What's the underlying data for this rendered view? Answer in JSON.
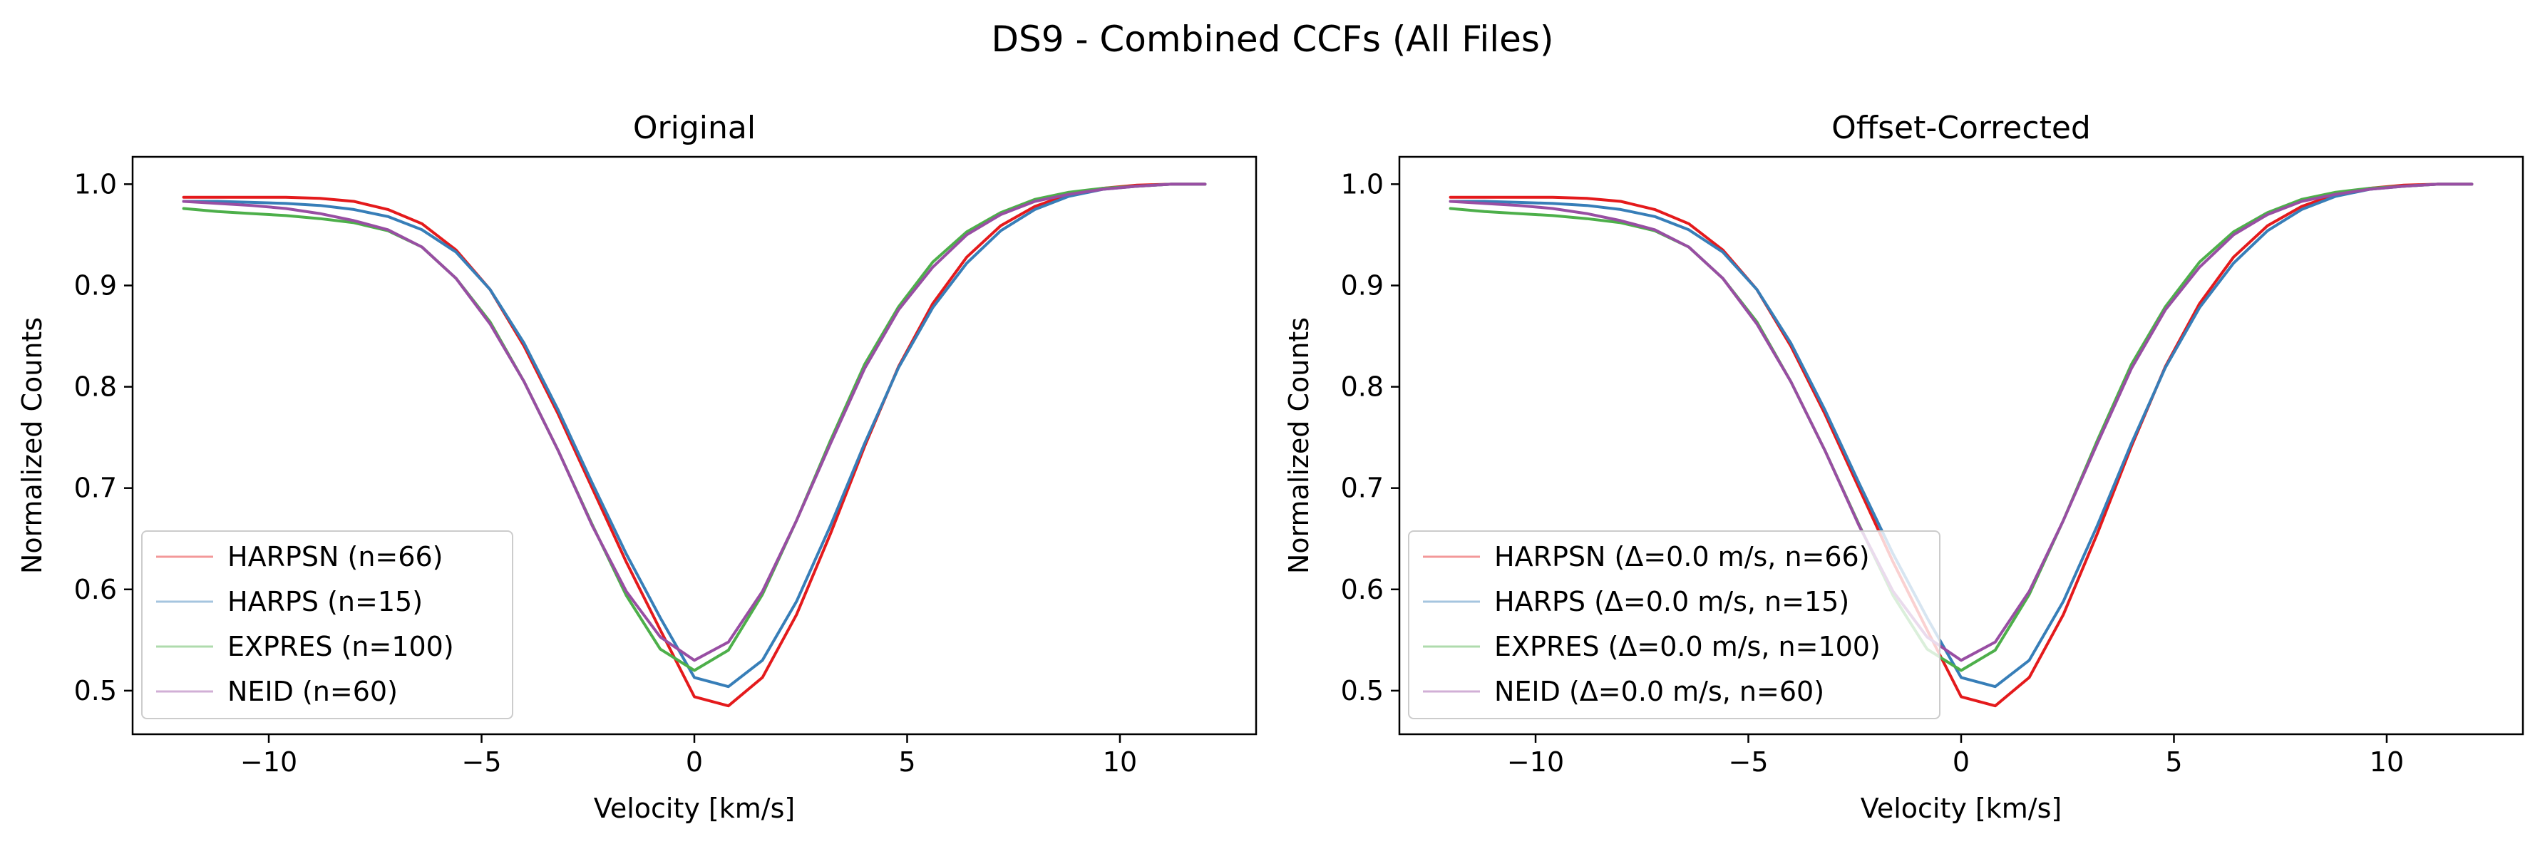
{
  "figure_title": "DS9 - Combined CCFs (All Files)",
  "chart_data": [
    {
      "type": "line",
      "title": "Original",
      "xlabel": "Velocity [km/s]",
      "ylabel": "Normalized Counts",
      "xlim": [
        -13.2,
        13.2
      ],
      "ylim": [
        0.457,
        1.027
      ],
      "xticks": [
        -10,
        -5,
        0,
        5,
        10
      ],
      "xtick_labels": [
        "−10",
        "−5",
        "0",
        "5",
        "10"
      ],
      "yticks": [
        0.5,
        0.6,
        0.7,
        0.8,
        0.9,
        1.0
      ],
      "ytick_labels": [
        "0.5",
        "0.6",
        "0.7",
        "0.8",
        "0.9",
        "1.0"
      ],
      "grid": false,
      "legend_position": "lower-left",
      "x": [
        -12,
        -11.2,
        -10.4,
        -9.6,
        -8.8,
        -8,
        -7.2,
        -6.4,
        -5.6,
        -4.8,
        -4,
        -3.2,
        -2.4,
        -1.6,
        -0.8,
        0,
        0.8,
        1.6,
        2.4,
        3.2,
        4,
        4.8,
        5.6,
        6.4,
        7.2,
        8,
        8.8,
        9.6,
        10.4,
        11.2,
        12
      ],
      "series": [
        {
          "name": "HARPSN (n=66)",
          "color": "#e41a1c",
          "values": [
            0.987,
            0.987,
            0.987,
            0.987,
            0.986,
            0.983,
            0.975,
            0.961,
            0.935,
            0.896,
            0.84,
            0.773,
            0.7,
            0.627,
            0.56,
            0.494,
            0.485,
            0.513,
            0.575,
            0.655,
            0.741,
            0.82,
            0.882,
            0.928,
            0.959,
            0.978,
            0.99,
            0.996,
            0.999,
            1.0,
            1.0
          ]
        },
        {
          "name": "HARPS (n=15)",
          "color": "#377eb8",
          "values": [
            0.983,
            0.983,
            0.982,
            0.981,
            0.979,
            0.975,
            0.968,
            0.955,
            0.933,
            0.896,
            0.843,
            0.777,
            0.705,
            0.635,
            0.572,
            0.513,
            0.504,
            0.53,
            0.588,
            0.663,
            0.744,
            0.819,
            0.878,
            0.922,
            0.954,
            0.975,
            0.988,
            0.995,
            0.998,
            1.0,
            1.0
          ]
        },
        {
          "name": "EXPRES (n=100)",
          "color": "#4daf4a",
          "values": [
            0.976,
            0.973,
            0.971,
            0.969,
            0.966,
            0.962,
            0.954,
            0.938,
            0.907,
            0.864,
            0.805,
            0.737,
            0.664,
            0.594,
            0.541,
            0.52,
            0.54,
            0.595,
            0.668,
            0.747,
            0.822,
            0.879,
            0.923,
            0.953,
            0.972,
            0.985,
            0.992,
            0.996,
            0.998,
            1.0,
            1.0
          ]
        },
        {
          "name": "NEID (n=60)",
          "color": "#984ea3",
          "values": [
            0.983,
            0.981,
            0.979,
            0.976,
            0.971,
            0.964,
            0.955,
            0.938,
            0.907,
            0.862,
            0.805,
            0.737,
            0.663,
            0.598,
            0.553,
            0.53,
            0.548,
            0.598,
            0.668,
            0.744,
            0.818,
            0.876,
            0.918,
            0.95,
            0.97,
            0.983,
            0.99,
            0.995,
            0.998,
            1.0,
            1.0
          ]
        }
      ]
    },
    {
      "type": "line",
      "title": "Offset-Corrected",
      "xlabel": "Velocity [km/s]",
      "ylabel": "Normalized Counts",
      "xlim": [
        -13.2,
        13.2
      ],
      "ylim": [
        0.457,
        1.027
      ],
      "xticks": [
        -10,
        -5,
        0,
        5,
        10
      ],
      "xtick_labels": [
        "−10",
        "−5",
        "0",
        "5",
        "10"
      ],
      "yticks": [
        0.5,
        0.6,
        0.7,
        0.8,
        0.9,
        1.0
      ],
      "ytick_labels": [
        "0.5",
        "0.6",
        "0.7",
        "0.8",
        "0.9",
        "1.0"
      ],
      "grid": false,
      "legend_position": "lower-left",
      "x": [
        -12,
        -11.2,
        -10.4,
        -9.6,
        -8.8,
        -8,
        -7.2,
        -6.4,
        -5.6,
        -4.8,
        -4,
        -3.2,
        -2.4,
        -1.6,
        -0.8,
        0,
        0.8,
        1.6,
        2.4,
        3.2,
        4,
        4.8,
        5.6,
        6.4,
        7.2,
        8,
        8.8,
        9.6,
        10.4,
        11.2,
        12
      ],
      "series": [
        {
          "name": "HARPSN (Δ=0.0 m/s, n=66)",
          "color": "#e41a1c",
          "values": [
            0.987,
            0.987,
            0.987,
            0.987,
            0.986,
            0.983,
            0.975,
            0.961,
            0.935,
            0.896,
            0.84,
            0.773,
            0.7,
            0.627,
            0.56,
            0.494,
            0.485,
            0.513,
            0.575,
            0.655,
            0.741,
            0.82,
            0.882,
            0.928,
            0.959,
            0.978,
            0.99,
            0.996,
            0.999,
            1.0,
            1.0
          ]
        },
        {
          "name": "HARPS (Δ=0.0 m/s, n=15)",
          "color": "#377eb8",
          "values": [
            0.983,
            0.983,
            0.982,
            0.981,
            0.979,
            0.975,
            0.968,
            0.955,
            0.933,
            0.896,
            0.843,
            0.777,
            0.705,
            0.635,
            0.572,
            0.513,
            0.504,
            0.53,
            0.588,
            0.663,
            0.744,
            0.819,
            0.878,
            0.922,
            0.954,
            0.975,
            0.988,
            0.995,
            0.998,
            1.0,
            1.0
          ]
        },
        {
          "name": "EXPRES (Δ=0.0 m/s, n=100)",
          "color": "#4daf4a",
          "values": [
            0.976,
            0.973,
            0.971,
            0.969,
            0.966,
            0.962,
            0.954,
            0.938,
            0.907,
            0.864,
            0.805,
            0.737,
            0.664,
            0.594,
            0.541,
            0.52,
            0.54,
            0.595,
            0.668,
            0.747,
            0.822,
            0.879,
            0.923,
            0.953,
            0.972,
            0.985,
            0.992,
            0.996,
            0.998,
            1.0,
            1.0
          ]
        },
        {
          "name": "NEID (Δ=0.0 m/s, n=60)",
          "color": "#984ea3",
          "values": [
            0.983,
            0.981,
            0.979,
            0.976,
            0.971,
            0.964,
            0.955,
            0.938,
            0.907,
            0.862,
            0.805,
            0.737,
            0.663,
            0.598,
            0.553,
            0.53,
            0.548,
            0.598,
            0.668,
            0.744,
            0.818,
            0.876,
            0.918,
            0.95,
            0.97,
            0.983,
            0.99,
            0.995,
            0.998,
            1.0,
            1.0
          ]
        }
      ]
    }
  ]
}
